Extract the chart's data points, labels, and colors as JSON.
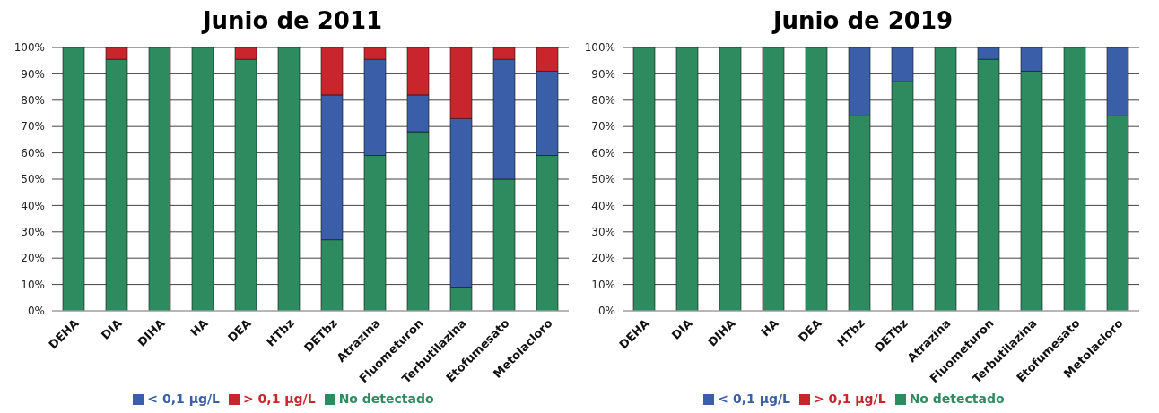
{
  "chart_data": [
    {
      "type": "bar",
      "title": "Junio de 2011",
      "stacked": true,
      "categories": [
        "DEHA",
        "DIA",
        "DIHA",
        "HA",
        "DEA",
        "HTbz",
        "DETbz",
        "Atrazina",
        "Fluometuron",
        "Terbutilazina",
        "Etofumesato",
        "Metolacloro"
      ],
      "series": [
        {
          "name": "No detectado",
          "color": "#2e8b5f",
          "values": [
            100,
            95.5,
            100,
            100,
            95.5,
            100,
            27,
            59,
            68,
            9,
            50,
            59
          ]
        },
        {
          "name": "< 0,1 µg/L",
          "color": "#3a5ea8",
          "values": [
            0,
            0,
            0,
            0,
            0,
            0,
            55,
            36.5,
            14,
            64,
            45.5,
            32
          ]
        },
        {
          "name": "> 0,1 µg/L",
          "color": "#c8262c",
          "values": [
            0,
            4.5,
            0,
            0,
            4.5,
            0,
            18,
            4.5,
            18,
            27,
            4.5,
            9
          ]
        }
      ],
      "ylim": [
        0,
        100
      ],
      "yticks": [
        {
          "value": 0,
          "label": "0%"
        },
        {
          "value": 10,
          "label": "10%"
        },
        {
          "value": 20,
          "label": "20%"
        },
        {
          "value": 30,
          "label": "30%"
        },
        {
          "value": 40,
          "label": "40%"
        },
        {
          "value": 50,
          "label": "50%"
        },
        {
          "value": 60,
          "label": "60%"
        },
        {
          "value": 70,
          "label": "70%"
        },
        {
          "value": 80,
          "label": "80%"
        },
        {
          "value": 90,
          "label": "90%"
        },
        {
          "value": 100,
          "label": "100%"
        }
      ],
      "grid": "y",
      "legend": "bottom"
    },
    {
      "type": "bar",
      "title": "Junio de 2019",
      "stacked": true,
      "categories": [
        "DEHA",
        "DIA",
        "DIHA",
        "HA",
        "DEA",
        "HTbz",
        "DETbz",
        "Atrazina",
        "Fluometuron",
        "Terbutilazina",
        "Etofumesato",
        "Metolacloro"
      ],
      "series": [
        {
          "name": "No detectado",
          "color": "#2e8b5f",
          "values": [
            100,
            100,
            100,
            100,
            100,
            74,
            87,
            100,
            95.5,
            91,
            100,
            74
          ]
        },
        {
          "name": "< 0,1 µg/L",
          "color": "#3a5ea8",
          "values": [
            0,
            0,
            0,
            0,
            0,
            26,
            13,
            0,
            4.5,
            9,
            0,
            26
          ]
        },
        {
          "name": "> 0,1 µg/L",
          "color": "#c8262c",
          "values": [
            0,
            0,
            0,
            0,
            0,
            0,
            0,
            0,
            0,
            0,
            0,
            0
          ]
        }
      ],
      "ylim": [
        0,
        100
      ],
      "yticks": [
        {
          "value": 0,
          "label": "0%"
        },
        {
          "value": 10,
          "label": "10%"
        },
        {
          "value": 20,
          "label": "20%"
        },
        {
          "value": 30,
          "label": "30%"
        },
        {
          "value": 40,
          "label": "40%"
        },
        {
          "value": 50,
          "label": "50%"
        },
        {
          "value": 60,
          "label": "60%"
        },
        {
          "value": 70,
          "label": "70%"
        },
        {
          "value": 80,
          "label": "80%"
        },
        {
          "value": 90,
          "label": "90%"
        },
        {
          "value": 100,
          "label": "100%"
        }
      ],
      "grid": "y",
      "legend": "bottom"
    }
  ]
}
